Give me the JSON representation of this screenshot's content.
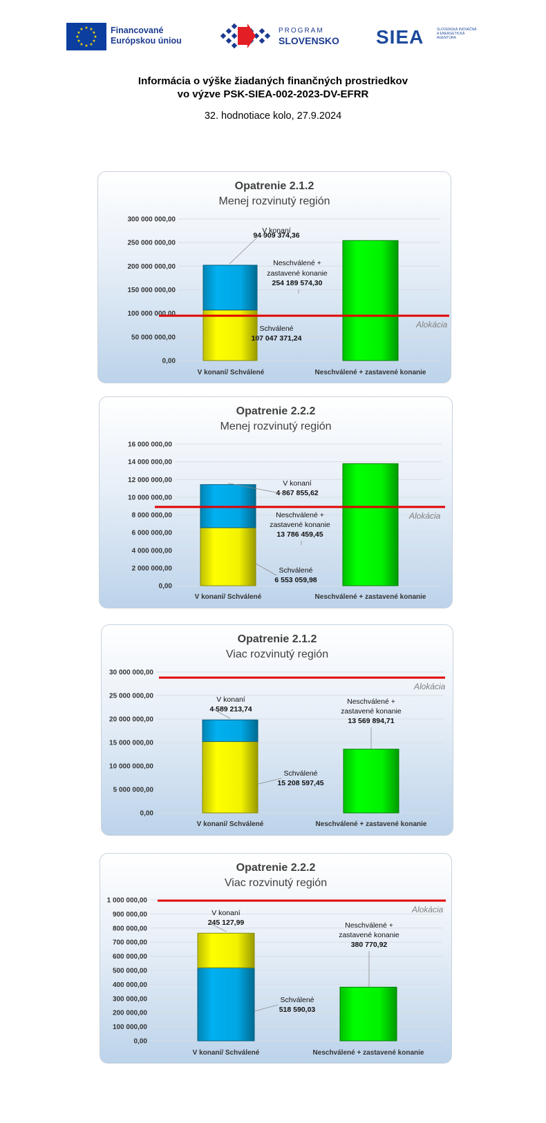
{
  "logos": {
    "eu_line1": "Financované",
    "eu_line2": "Európskou úniou",
    "program_line1": "PROGRAM",
    "program_line2": "SLOVENSKO",
    "siea": "SIEA",
    "siea_small": "SLOVENSKÁ INOVAČNÁ A ENERGETICKÁ AGENTÚRA"
  },
  "header": {
    "title_line1": "Informácia o výške žiadaných finančných prostriedkov",
    "title_line2": "vo výzve PSK-SIEA-002-2023-DV-EFRR",
    "subtitle": "32. hodnotiace kolo, 27.9.2024"
  },
  "chart_data": [
    {
      "type": "bar",
      "title": "Opatrenie 2.1.2",
      "subtitle": "Menej rozvinutý región",
      "categories": [
        "V konaní/ Schválené",
        "Neschválené + zastavené konanie"
      ],
      "ylim": [
        0,
        300000000
      ],
      "yticks": [
        0,
        50000000,
        100000000,
        150000000,
        200000000,
        250000000,
        300000000
      ],
      "ytick_labels": [
        "0,00",
        "50 000 000,00",
        "100 000 000,00",
        "150 000 000,00",
        "200 000 000,00",
        "250 000 000,00",
        "300 000 000,00"
      ],
      "stacked_bottom_color": "#ffff00",
      "stacked_top_color": "#00b0f0",
      "stack": [
        {
          "label": "Schválené",
          "value": 107047371.24,
          "value_label": "107 047 371,24"
        },
        {
          "label": "V konaní",
          "value": 94909374.36,
          "value_label": "94 909 374,36"
        }
      ],
      "rejected": {
        "label_line1": "Neschválené +",
        "label_line2": "zastavené konanie",
        "value": 254189574.3,
        "value_label": "254 189 574,30",
        "color": "#00ff00"
      },
      "allocation": {
        "label": "Alokácia",
        "value": 95000000
      },
      "grid": true
    },
    {
      "type": "bar",
      "title": "Opatrenie 2.2.2",
      "subtitle": "Menej rozvinutý región",
      "categories": [
        "V konaní/ Schválené",
        "Neschválené + zastavené konanie"
      ],
      "ylim": [
        0,
        16000000
      ],
      "yticks": [
        0,
        2000000,
        4000000,
        6000000,
        8000000,
        10000000,
        12000000,
        14000000,
        16000000
      ],
      "ytick_labels": [
        "0,00",
        "2 000 000,00",
        "4 000 000,00",
        "6 000 000,00",
        "8 000 000,00",
        "10 000 000,00",
        "12 000 000,00",
        "14 000 000,00",
        "16 000 000,00"
      ],
      "stacked_bottom_color": "#ffff00",
      "stacked_top_color": "#00b0f0",
      "stack": [
        {
          "label": "Schválené",
          "value": 6553059.98,
          "value_label": "6 553 059,98"
        },
        {
          "label": "V konaní",
          "value": 4867855.62,
          "value_label": "4 867 855,62"
        }
      ],
      "rejected": {
        "label_line1": "Neschválené +",
        "label_line2": "zastavené konanie",
        "value": 13786459.45,
        "value_label": "13 786 459,45",
        "color": "#00ff00"
      },
      "allocation": {
        "label": "Alokácia",
        "value": 8900000
      },
      "grid": true
    },
    {
      "type": "bar",
      "title": "Opatrenie 2.1.2",
      "subtitle": "Viac rozvinutý región",
      "categories": [
        "V konaní/ Schválené",
        "Neschválené + zastavené konanie"
      ],
      "ylim": [
        0,
        30000000
      ],
      "yticks": [
        0,
        5000000,
        10000000,
        15000000,
        20000000,
        25000000,
        30000000
      ],
      "ytick_labels": [
        "0,00",
        "5 000 000,00",
        "10 000 000,00",
        "15 000 000,00",
        "20 000 000,00",
        "25 000 000,00",
        "30 000 000,00"
      ],
      "stacked_bottom_color": "#ffff00",
      "stacked_top_color": "#00b0f0",
      "stack": [
        {
          "label": "Schválené",
          "value": 15208597.45,
          "value_label": "15 208 597,45"
        },
        {
          "label": "V konaní",
          "value": 4589213.74,
          "value_label": "4 589 213,74"
        }
      ],
      "rejected": {
        "label_line1": "Neschválené +",
        "label_line2": "zastavené konanie",
        "value": 13569894.71,
        "value_label": "13 569 894,71",
        "color": "#00ff00"
      },
      "allocation": {
        "label": "Alokácia",
        "value": 28800000
      },
      "grid": true
    },
    {
      "type": "bar",
      "title": "Opatrenie 2.2.2",
      "subtitle": "Viac rozvinutý región",
      "categories": [
        "V konaní/ Schválené",
        "Neschválené + zastavené konanie"
      ],
      "ylim": [
        0,
        1000000
      ],
      "yticks": [
        0,
        100000,
        200000,
        300000,
        400000,
        500000,
        600000,
        700000,
        800000,
        900000,
        1000000
      ],
      "ytick_labels": [
        "0,00",
        "100 000,00",
        "200 000,00",
        "300 000,00",
        "400 000,00",
        "500 000,00",
        "600 000,00",
        "700 000,00",
        "800 000,00",
        "900 000,00",
        "1 000 000,00"
      ],
      "stacked_bottom_color": "#00b0f0",
      "stacked_top_color": "#ffff00",
      "stack": [
        {
          "label": "Schválené",
          "value": 518590.03,
          "value_label": "518 590,03"
        },
        {
          "label": "V konaní",
          "value": 245127.99,
          "value_label": "245 127,99"
        }
      ],
      "rejected": {
        "label_line1": "Neschválené +",
        "label_line2": "zastavené konanie",
        "value": 380770.92,
        "value_label": "380 770,92",
        "color": "#00ff00"
      },
      "allocation": {
        "label": "Alokácia",
        "value": 995000
      },
      "grid": true
    }
  ]
}
